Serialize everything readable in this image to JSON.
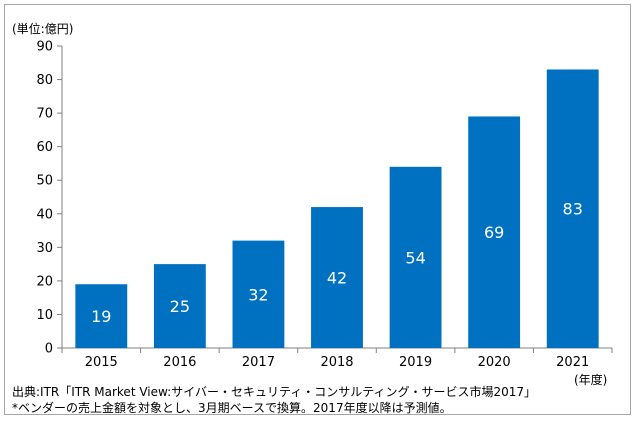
{
  "chart_data": {
    "type": "bar",
    "title": "",
    "unit_label": "(単位:億円)",
    "x_unit_label": "(年度)",
    "categories": [
      "2015",
      "2016",
      "2017",
      "2018",
      "2019",
      "2020",
      "2021"
    ],
    "series": [
      {
        "values": [
          19,
          25,
          32,
          42,
          54,
          69,
          83
        ],
        "color": "#0070c0"
      }
    ],
    "data_labels": [
      "19",
      "25",
      "32",
      "42",
      "54",
      "69",
      "83"
    ],
    "ylim": [
      0,
      90
    ],
    "yticks": [
      0,
      10,
      20,
      30,
      40,
      50,
      60,
      70,
      80,
      90
    ],
    "grid": false,
    "legend": "none"
  },
  "notes": {
    "source": "出典:ITR「ITR Market View:サイバー・セキュリティ・コンサルティング・サービス市場2017」",
    "footnote": "*ベンダーの売上金額を対象とし、3月期ベースで換算。2017年度以降は予測値。"
  },
  "colors": {
    "bar": "#0070c0",
    "bar_label": "#ffffff",
    "axis": "#808080",
    "frame_border": "#a6a6a6"
  }
}
